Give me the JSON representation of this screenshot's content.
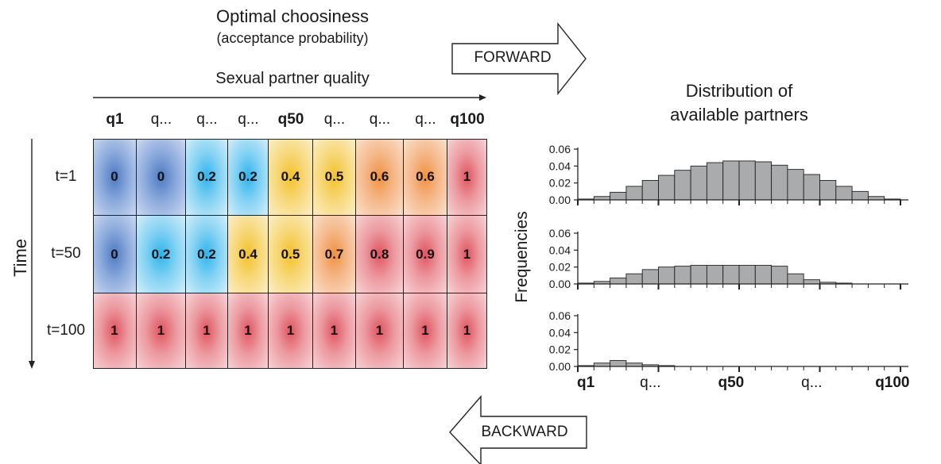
{
  "title": "Optimal choosiness",
  "subtitle": "(acceptance probability)",
  "x_axis_label": "Sexual partner quality",
  "time_label": "Time",
  "forward_label": "FORWARD",
  "backward_label": "BACKWARD",
  "distribution_title_line1": "Distribution of",
  "distribution_title_line2": "available partners",
  "frequencies_label": "Frequencies",
  "columns": [
    {
      "label": "q1",
      "bold": true
    },
    {
      "label": "q...",
      "bold": false
    },
    {
      "label": "q...",
      "bold": false
    },
    {
      "label": "q...",
      "bold": false
    },
    {
      "label": "q50",
      "bold": true
    },
    {
      "label": "q...",
      "bold": false
    },
    {
      "label": "q...",
      "bold": false
    },
    {
      "label": "q...",
      "bold": false
    },
    {
      "label": "q100",
      "bold": true
    }
  ],
  "rows": [
    {
      "label": "t=1",
      "values": [
        "0",
        "0",
        "0.2",
        "0.2",
        "0.4",
        "0.5",
        "0.6",
        "0.6",
        "1"
      ],
      "colors": [
        "blue",
        "blue",
        "cyan",
        "cyan",
        "yellow",
        "yellow",
        "orange",
        "orange",
        "red"
      ]
    },
    {
      "label": "t=50",
      "values": [
        "0",
        "0.2",
        "0.2",
        "0.4",
        "0.5",
        "0.7",
        "0.8",
        "0.9",
        "1"
      ],
      "colors": [
        "blue",
        "cyan",
        "cyan",
        "yellow",
        "yellow",
        "orange",
        "red",
        "red",
        "red"
      ]
    },
    {
      "label": "t=100",
      "values": [
        "1",
        "1",
        "1",
        "1",
        "1",
        "1",
        "1",
        "1",
        "1"
      ],
      "colors": [
        "red",
        "red",
        "red",
        "red",
        "red",
        "red",
        "red",
        "red",
        "red"
      ]
    }
  ],
  "chart_data": {
    "type": "bar",
    "ylabel": "Frequencies",
    "yticks": [
      "0.00",
      "0.02",
      "0.04",
      "0.06"
    ],
    "ylim": [
      0,
      0.06
    ],
    "x_tick_labels": [
      {
        "label": "q1",
        "bold": true,
        "bin": 0.5
      },
      {
        "label": "q...",
        "bold": false,
        "bin": 4.5
      },
      {
        "label": "q50",
        "bold": true,
        "bin": 9.5
      },
      {
        "label": "q...",
        "bold": false,
        "bin": 14.5
      },
      {
        "label": "q100",
        "bold": true,
        "bin": 19.5
      }
    ],
    "series": [
      {
        "values": [
          0.001,
          0.004,
          0.009,
          0.016,
          0.023,
          0.029,
          0.035,
          0.04,
          0.044,
          0.046,
          0.046,
          0.045,
          0.041,
          0.036,
          0.03,
          0.023,
          0.016,
          0.01,
          0.004,
          0.001
        ]
      },
      {
        "values": [
          0.001,
          0.003,
          0.007,
          0.012,
          0.017,
          0.02,
          0.021,
          0.022,
          0.022,
          0.022,
          0.022,
          0.022,
          0.021,
          0.012,
          0.005,
          0.002,
          0.001,
          0.0,
          0.0,
          0.0
        ]
      },
      {
        "values": [
          0.001,
          0.004,
          0.007,
          0.004,
          0.002,
          0.001,
          0.0,
          0.0,
          0.0,
          0.0,
          0.0,
          0.0,
          0.0,
          0.0,
          0.0,
          0.0,
          0.0,
          0.0,
          0.0,
          0.0
        ]
      }
    ],
    "bar_color": "#a9abad"
  }
}
